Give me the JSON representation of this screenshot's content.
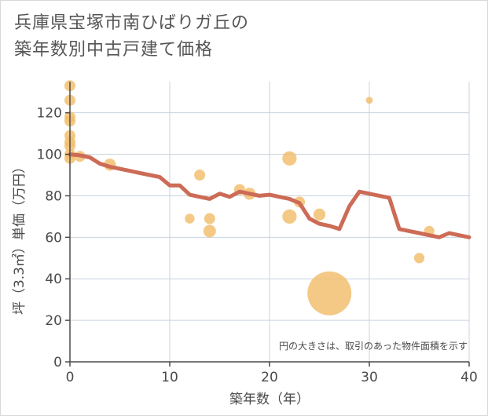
{
  "chart_data": {
    "type": "scatter",
    "title_lines": [
      "兵庫県宝塚市南ひばりガ丘の",
      "築年数別中古戸建て価格"
    ],
    "xlabel": "築年数（年）",
    "ylabel": "坪（3.3㎡）単価（万円）",
    "xlim": [
      0,
      40
    ],
    "ylim": [
      0,
      135
    ],
    "x_ticks": [
      0,
      10,
      20,
      30,
      40
    ],
    "y_ticks": [
      0,
      20,
      40,
      60,
      80,
      100,
      120
    ],
    "grid": true,
    "note": "円の大きさは、取引のあった物件面積を示す",
    "colors": {
      "bubble": "#f2bd6b",
      "line": "#cc6b56",
      "grid": "#c9d3dd",
      "axis": "#4a4a4a"
    },
    "bubbles": [
      {
        "x": 0,
        "y": 133,
        "size": 1
      },
      {
        "x": 0,
        "y": 126,
        "size": 1
      },
      {
        "x": 0,
        "y": 118,
        "size": 1
      },
      {
        "x": 0,
        "y": 116,
        "size": 1
      },
      {
        "x": 0,
        "y": 109,
        "size": 1
      },
      {
        "x": 0,
        "y": 106,
        "size": 1
      },
      {
        "x": 0,
        "y": 104,
        "size": 1
      },
      {
        "x": 0,
        "y": 100,
        "size": 1
      },
      {
        "x": 0,
        "y": 98,
        "size": 1
      },
      {
        "x": 1,
        "y": 99,
        "size": 1
      },
      {
        "x": 4,
        "y": 95,
        "size": 1.2
      },
      {
        "x": 12,
        "y": 69,
        "size": 0.8
      },
      {
        "x": 13,
        "y": 90,
        "size": 1
      },
      {
        "x": 14,
        "y": 69,
        "size": 1
      },
      {
        "x": 14,
        "y": 63,
        "size": 1.3
      },
      {
        "x": 17,
        "y": 83,
        "size": 1
      },
      {
        "x": 18,
        "y": 81,
        "size": 1.2
      },
      {
        "x": 22,
        "y": 98,
        "size": 1.7
      },
      {
        "x": 22,
        "y": 70,
        "size": 1.7
      },
      {
        "x": 23,
        "y": 77,
        "size": 1
      },
      {
        "x": 25,
        "y": 71,
        "size": 1.2
      },
      {
        "x": 26,
        "y": 33,
        "size": 16
      },
      {
        "x": 30,
        "y": 126,
        "size": 0.4
      },
      {
        "x": 35,
        "y": 50,
        "size": 0.9
      },
      {
        "x": 36,
        "y": 63,
        "size": 0.9
      }
    ],
    "trend": {
      "x": [
        0,
        1,
        2,
        3,
        4,
        5,
        6,
        7,
        8,
        9,
        10,
        11,
        12,
        13,
        14,
        15,
        16,
        17,
        18,
        19,
        20,
        21,
        22,
        23,
        24,
        25,
        26,
        27,
        28,
        29,
        30,
        31,
        32,
        33,
        34,
        35,
        36,
        37,
        38,
        39,
        40
      ],
      "y": [
        100,
        99.5,
        98.5,
        95.5,
        94,
        93,
        92,
        91,
        90,
        89,
        85,
        85,
        80.5,
        79.5,
        78.5,
        81,
        79.5,
        82,
        81,
        80,
        80.5,
        79.5,
        78.5,
        76.5,
        69,
        66.5,
        65.5,
        64,
        75,
        82,
        81,
        80,
        79,
        64,
        63,
        62,
        61,
        60,
        62,
        61,
        60
      ]
    }
  }
}
